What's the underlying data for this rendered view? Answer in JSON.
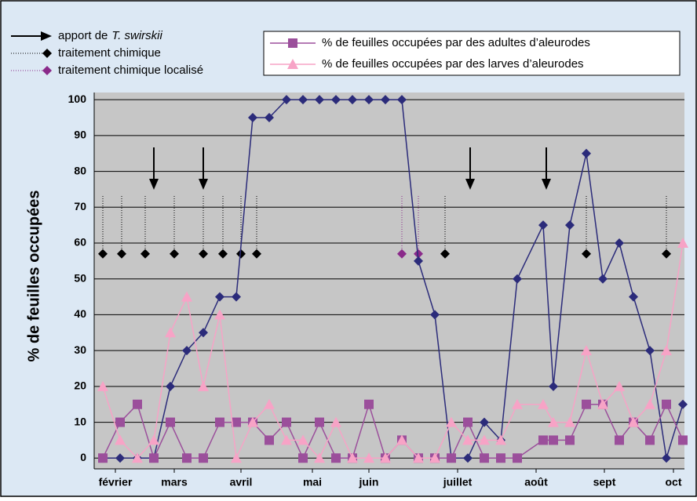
{
  "chart_data": {
    "type": "line",
    "y_label": "% de feuilles occupées",
    "x": [
      131,
      153,
      175,
      196,
      217,
      238,
      259,
      280,
      301,
      322,
      343,
      365,
      386,
      407,
      428,
      449,
      470,
      491,
      512,
      533,
      554,
      575,
      596,
      617,
      638,
      659,
      692,
      705,
      726,
      747,
      768,
      789,
      807,
      828,
      849,
      870
    ],
    "xlim": [
      120,
      872
    ],
    "xticks": [
      {
        "value": 147,
        "label": "février"
      },
      {
        "value": 222,
        "label": "mars"
      },
      {
        "value": 307,
        "label": "avril"
      },
      {
        "value": 398,
        "label": "mai"
      },
      {
        "value": 470,
        "label": "juin"
      },
      {
        "value": 583,
        "label": "juillet"
      },
      {
        "value": 683,
        "label": "août"
      },
      {
        "value": 770,
        "label": "sept"
      },
      {
        "value": 858,
        "label": "oct"
      }
    ],
    "ylim": [
      -3,
      102
    ],
    "yticks": [
      0,
      10,
      20,
      30,
      40,
      50,
      60,
      70,
      80,
      90,
      100
    ],
    "grid": true,
    "series": [
      {
        "color": "#2b2b7a",
        "marker": "diamond",
        "values": [
          0,
          0,
          0,
          0,
          20,
          30,
          35,
          45,
          45,
          95,
          95,
          100,
          100,
          100,
          100,
          100,
          100,
          100,
          100,
          55,
          40,
          0,
          0,
          10,
          5,
          50,
          65,
          20,
          65,
          85,
          50,
          60,
          45,
          30,
          0,
          15
        ]
      },
      {
        "name": "% de feuilles occupées par des adultes d’aleurodes",
        "color": "#9b4f9b",
        "marker": "square",
        "values": [
          0,
          10,
          15,
          0,
          10,
          0,
          0,
          10,
          10,
          10,
          5,
          10,
          0,
          10,
          0,
          0,
          15,
          0,
          5,
          0,
          0,
          0,
          10,
          0,
          0,
          0,
          5,
          5,
          5,
          15,
          15,
          5,
          10,
          5,
          15,
          5
        ]
      },
      {
        "name": "% de feuilles occupées par des larves d’aleurodes",
        "color": "#f7a3c6",
        "marker": "triangle",
        "values": [
          20,
          5,
          0,
          5,
          35,
          45,
          20,
          40,
          0,
          10,
          15,
          5,
          5,
          0,
          10,
          0,
          0,
          0,
          5,
          0,
          0,
          10,
          5,
          5,
          5,
          15,
          15,
          10,
          10,
          30,
          15,
          20,
          10,
          15,
          30,
          60
        ]
      }
    ],
    "events": [
      {
        "label": [
          "apport de",
          "T. swirskii"
        ],
        "kind": "arrow",
        "color": "#000000",
        "x": [
          196,
          259,
          599,
          696
        ]
      },
      {
        "label": [
          "traitement chimique"
        ],
        "kind": "treatment",
        "color": "#000000",
        "y": 57,
        "x": [
          131,
          155,
          185,
          222,
          259,
          284,
          307,
          327,
          567,
          747,
          849
        ]
      },
      {
        "label": [
          "traitement chimique localisé"
        ],
        "kind": "treatment",
        "color": "#8a2a8a",
        "y": 57,
        "x": [
          512,
          533
        ]
      }
    ]
  }
}
